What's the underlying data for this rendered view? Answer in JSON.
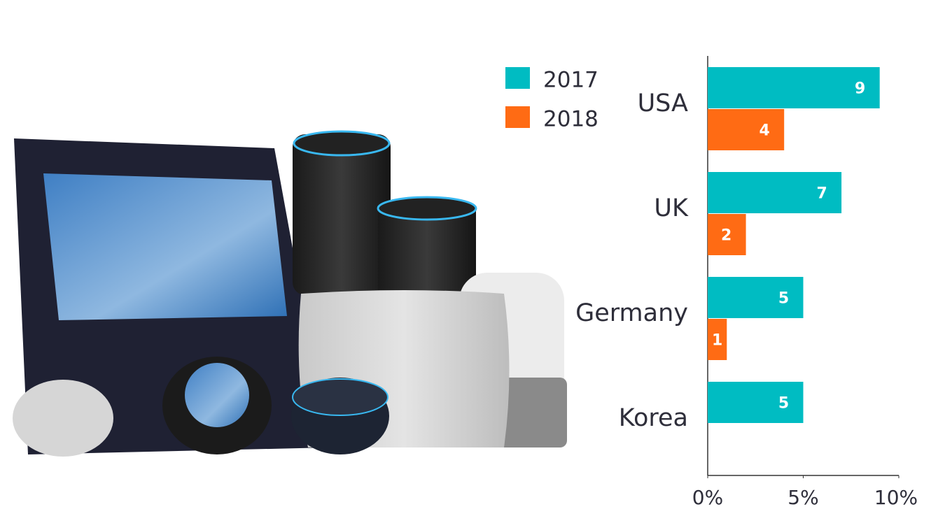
{
  "chart_data": {
    "type": "bar",
    "orientation": "horizontal",
    "categories": [
      "USA",
      "UK",
      "Germany",
      "Korea"
    ],
    "series": [
      {
        "name": "2017",
        "color": "#00bcc2",
        "values": [
          9,
          7,
          5,
          5
        ]
      },
      {
        "name": "2018",
        "color": "#ff6b14",
        "values": [
          4,
          2,
          1,
          null
        ]
      }
    ],
    "xlim": [
      0,
      10
    ],
    "xticks": [
      {
        "value": 0,
        "label": "0%"
      },
      {
        "value": 5,
        "label": "5%"
      },
      {
        "value": 10,
        "label": "10%"
      }
    ],
    "legend": "top-left"
  }
}
